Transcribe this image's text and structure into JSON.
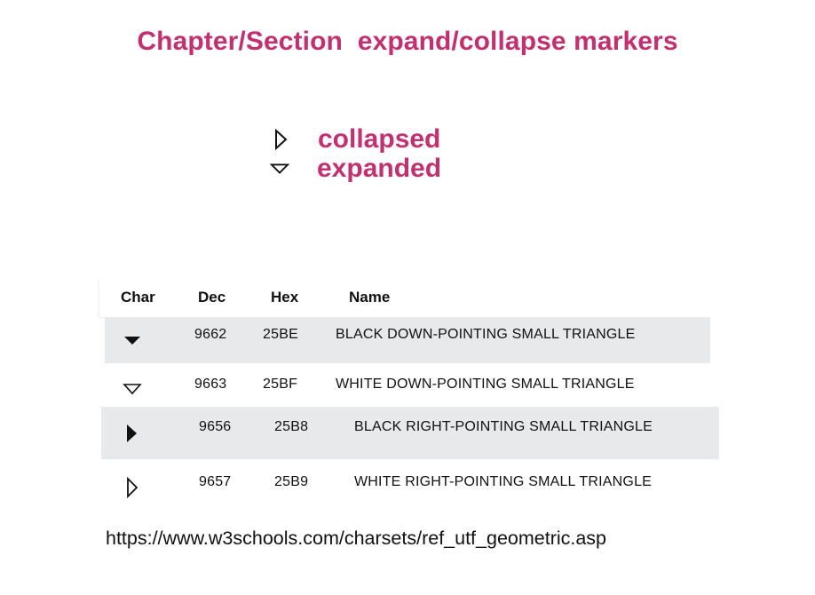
{
  "title": "Chapter/Section  expand/collapse markers",
  "legend": [
    {
      "icon": "white-right-pointing-triangle-icon",
      "label": "collapsed"
    },
    {
      "icon": "white-down-pointing-triangle-icon",
      "label": "expanded"
    }
  ],
  "table": {
    "headers": {
      "char": "Char",
      "dec": "Dec",
      "hex": "Hex",
      "name": "Name"
    },
    "rows": [
      {
        "icon": "black-down-pointing-small-triangle-icon",
        "dec": "9662",
        "hex": "25BE",
        "name": "BLACK DOWN-POINTING SMALL TRIANGLE"
      },
      {
        "icon": "white-down-pointing-small-triangle-icon",
        "dec": "9663",
        "hex": "25BF",
        "name": "WHITE DOWN-POINTING SMALL TRIANGLE"
      },
      {
        "icon": "black-right-pointing-small-triangle-icon",
        "dec": "9656",
        "hex": "25B8",
        "name": "BLACK RIGHT-POINTING SMALL TRIANGLE"
      },
      {
        "icon": "white-right-pointing-small-triangle-icon",
        "dec": "9657",
        "hex": "25B9",
        "name": "WHITE RIGHT-POINTING SMALL TRIANGLE"
      }
    ]
  },
  "source_url": "https://www.w3schools.com/charsets/ref_utf_geometric.asp",
  "colors": {
    "accent": "#c2306f",
    "row_shade": "#e7e9eb",
    "text": "#111111"
  }
}
